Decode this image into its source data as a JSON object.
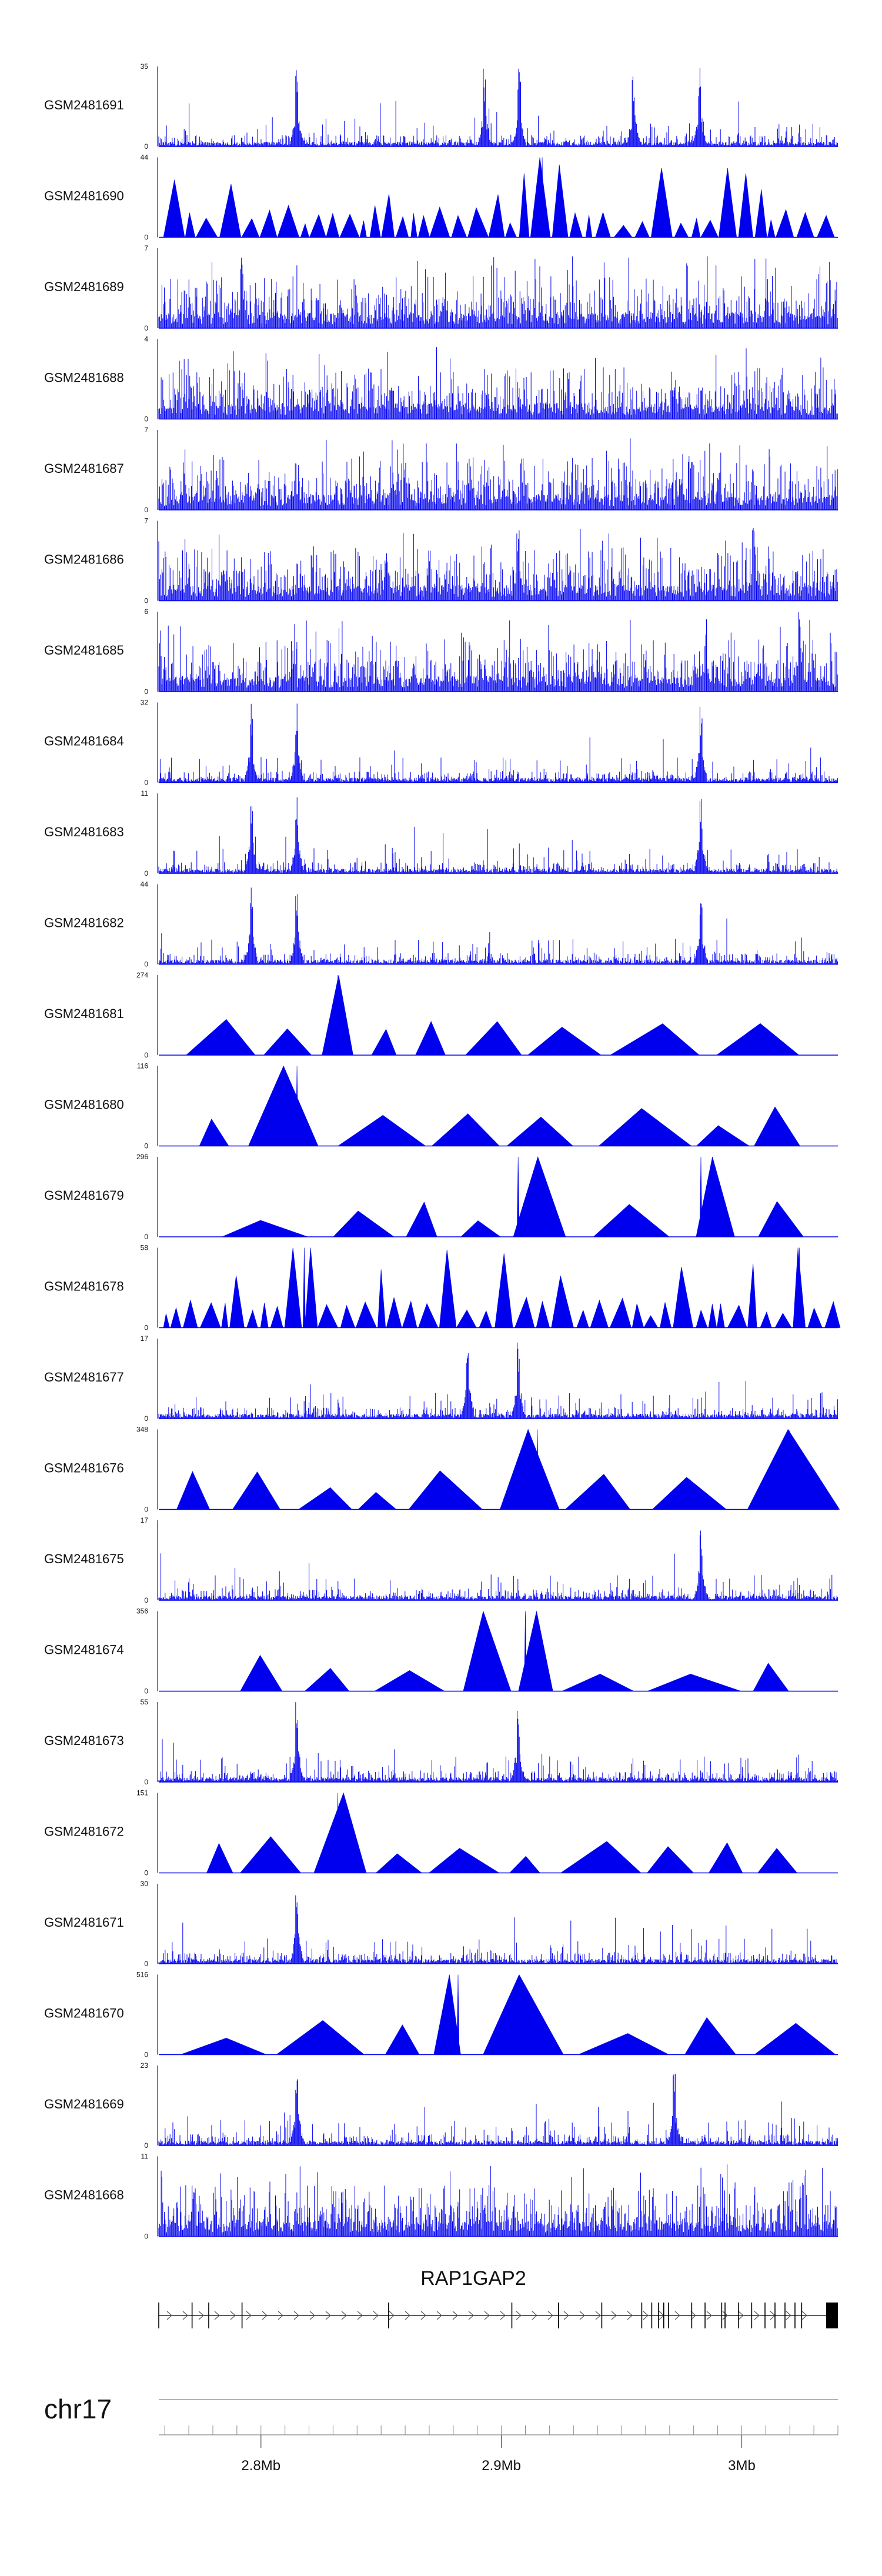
{
  "chart_data": {
    "type": "area",
    "title": "",
    "xlabel": "",
    "ylabel": "",
    "colors": {
      "signal": "#0000ee",
      "axis": "#000000",
      "gene": "#000000"
    },
    "tracks": [
      {
        "label": "GSM2481691",
        "ymax_label": "35",
        "ylim": [
          0,
          35
        ],
        "style": "spiky",
        "peak_positions": [
          2.815,
          2.893,
          2.9075,
          2.955,
          2.9825
        ]
      },
      {
        "label": "GSM2481690",
        "ymax_label": "44",
        "ylim": [
          0,
          44
        ],
        "style": "triangles-dense",
        "peak_positions": [
          2.917
        ]
      },
      {
        "label": "GSM2481689",
        "ymax_label": "7",
        "ylim": [
          0,
          7
        ],
        "style": "noise",
        "peak_positions": [
          2.792
        ]
      },
      {
        "label": "GSM2481688",
        "ymax_label": "4",
        "ylim": [
          0,
          4
        ],
        "style": "noise",
        "peak_positions": []
      },
      {
        "label": "GSM2481687",
        "ymax_label": "7",
        "ylim": [
          0,
          7
        ],
        "style": "noise",
        "peak_positions": []
      },
      {
        "label": "GSM2481686",
        "ymax_label": "7",
        "ylim": [
          0,
          7
        ],
        "style": "noise",
        "peak_positions": [
          2.907,
          3.005
        ]
      },
      {
        "label": "GSM2481685",
        "ymax_label": "6",
        "ylim": [
          0,
          6
        ],
        "style": "noise",
        "peak_positions": [
          2.985,
          3.024
        ]
      },
      {
        "label": "GSM2481684",
        "ymax_label": "32",
        "ylim": [
          0,
          32
        ],
        "style": "spiky",
        "peak_positions": [
          2.796,
          2.815,
          2.983
        ]
      },
      {
        "label": "GSM2481683",
        "ymax_label": "11",
        "ylim": [
          0,
          11
        ],
        "style": "spiky",
        "peak_positions": [
          2.796,
          2.815,
          2.983
        ]
      },
      {
        "label": "GSM2481682",
        "ymax_label": "44",
        "ylim": [
          0,
          44
        ],
        "style": "spiky",
        "peak_positions": [
          2.796,
          2.815,
          2.983
        ]
      },
      {
        "label": "GSM2481681",
        "ymax_label": "274",
        "ylim": [
          0,
          274
        ],
        "style": "triangles-sparse",
        "peak_positions": [
          2.832
        ]
      },
      {
        "label": "GSM2481680",
        "ymax_label": "116",
        "ylim": [
          0,
          116
        ],
        "style": "triangles-sparse",
        "peak_positions": [
          2.815
        ]
      },
      {
        "label": "GSM2481679",
        "ymax_label": "296",
        "ylim": [
          0,
          296
        ],
        "style": "triangles-sparse",
        "peak_positions": [
          2.907,
          2.983
        ]
      },
      {
        "label": "GSM2481678",
        "ymax_label": "58",
        "ylim": [
          0,
          58
        ],
        "style": "triangles-dense",
        "peak_positions": [
          2.818,
          3.024
        ]
      },
      {
        "label": "GSM2481677",
        "ymax_label": "17",
        "ylim": [
          0,
          17
        ],
        "style": "spiky",
        "peak_positions": [
          2.886,
          2.907
        ]
      },
      {
        "label": "GSM2481676",
        "ymax_label": "348",
        "ylim": [
          0,
          348
        ],
        "style": "triangles-sparse",
        "peak_positions": [
          2.915,
          3.02
        ]
      },
      {
        "label": "GSM2481675",
        "ymax_label": "17",
        "ylim": [
          0,
          17
        ],
        "style": "spiky",
        "peak_positions": [
          2.983
        ]
      },
      {
        "label": "GSM2481674",
        "ymax_label": "356",
        "ylim": [
          0,
          356
        ],
        "style": "triangles-sparse",
        "peak_positions": [
          2.91
        ]
      },
      {
        "label": "GSM2481673",
        "ymax_label": "55",
        "ylim": [
          0,
          55
        ],
        "style": "spiky",
        "peak_positions": [
          2.815,
          2.907
        ]
      },
      {
        "label": "GSM2481672",
        "ymax_label": "151",
        "ylim": [
          0,
          151
        ],
        "style": "triangles-sparse",
        "peak_positions": [
          2.832
        ]
      },
      {
        "label": "GSM2481671",
        "ymax_label": "30",
        "ylim": [
          0,
          30
        ],
        "style": "spiky",
        "peak_positions": [
          2.815
        ]
      },
      {
        "label": "GSM2481670",
        "ymax_label": "516",
        "ylim": [
          0,
          516
        ],
        "style": "triangles-sparse",
        "peak_positions": [
          2.882
        ]
      },
      {
        "label": "GSM2481669",
        "ymax_label": "23",
        "ylim": [
          0,
          23
        ],
        "style": "spiky",
        "peak_positions": [
          2.815,
          2.972
        ]
      },
      {
        "label": "GSM2481668",
        "ymax_label": "11",
        "ylim": [
          0,
          11
        ],
        "style": "noise",
        "peak_positions": []
      }
    ],
    "gene": {
      "name": "RAP1GAP2",
      "start": 2.7575,
      "end": 3.04,
      "strand": "+"
    },
    "chromosome": "chr17",
    "x_axis": {
      "range": [
        2.7575,
        3.04
      ],
      "ticks": [
        {
          "value": 2.8,
          "label": "2.8Mb"
        },
        {
          "value": 2.9,
          "label": "2.9Mb"
        },
        {
          "value": 3.0,
          "label": "3Mb"
        }
      ]
    }
  }
}
